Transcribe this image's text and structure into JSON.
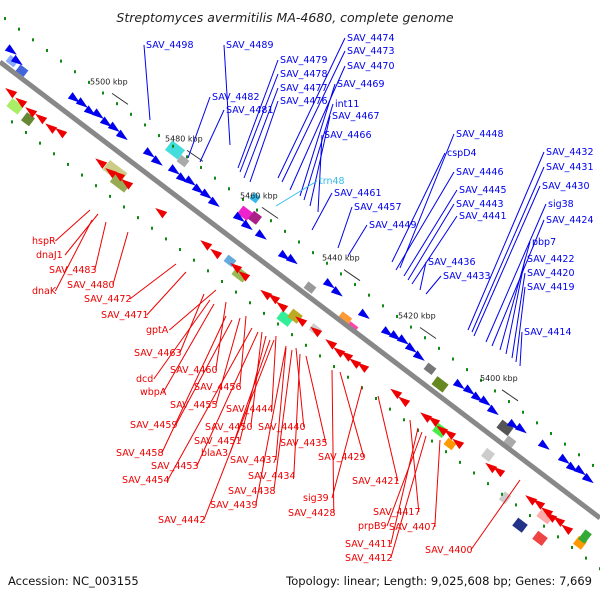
{
  "title": "Streptomyces avermitilis MA-4680, complete genome",
  "footer": {
    "accession": "Accession: NC_003155",
    "summary": "Topology: linear; Length: 9,025,608 bp; Genes: 7,669"
  },
  "colors": {
    "forward_gene": "#0000ee",
    "reverse_gene": "#ee0000",
    "rna_gene": "#33bbee",
    "backbone": "#888888",
    "tick": "#118811"
  },
  "position_ticks": [
    "5500 kbp",
    "5480 kbp",
    "5460 kbp",
    "5440 kbp",
    "5420 kbp",
    "5400 kbp"
  ],
  "upper_labels": [
    "SAV_4498",
    "SAV_4489",
    "SAV_4474",
    "SAV_4473",
    "SAV_4479",
    "SAV_4470",
    "SAV_4478",
    "SAV_4477",
    "SAV_4469",
    "SAV_4482",
    "SAV_4476",
    "int11",
    "SAV_4481",
    "SAV_4467",
    "SAV_4466",
    "SAV_4448",
    "cspD4",
    "SAV_4432",
    "SAV_4431",
    "SAV_4446",
    "trn48",
    "SAV_4430",
    "SAV_4461",
    "SAV_4445",
    "sig38",
    "SAV_4457",
    "SAV_4443",
    "SAV_4424",
    "SAV_4441",
    "SAV_4449",
    "pbp7",
    "SAV_4436",
    "SAV_4422",
    "SAV_4433",
    "SAV_4420",
    "SAV_4419",
    "SAV_4414"
  ],
  "lower_labels": [
    "hspR",
    "dnaJ1",
    "SAV_4483",
    "SAV_4480",
    "dnaK",
    "SAV_4472",
    "SAV_4471",
    "gptA",
    "SAV_4463",
    "SAV_4460",
    "dcd",
    "wbpA",
    "SAV_4456",
    "SAV_4455",
    "SAV_4444",
    "SAV_4459",
    "SAV_4450",
    "SAV_4440",
    "SAV_4451",
    "SAV_4435",
    "blaA3",
    "SAV_4458",
    "SAV_4437",
    "SAV_4429",
    "SAV_4453",
    "SAV_4434",
    "SAV_4454",
    "SAV_4421",
    "SAV_4438",
    "sig39",
    "SAV_4439",
    "SAV_4428",
    "SAV_4417",
    "SAV_4442",
    "prpB9",
    "SAV_4407",
    "SAV_4411",
    "SAV_4412",
    "SAV_4400"
  ]
}
